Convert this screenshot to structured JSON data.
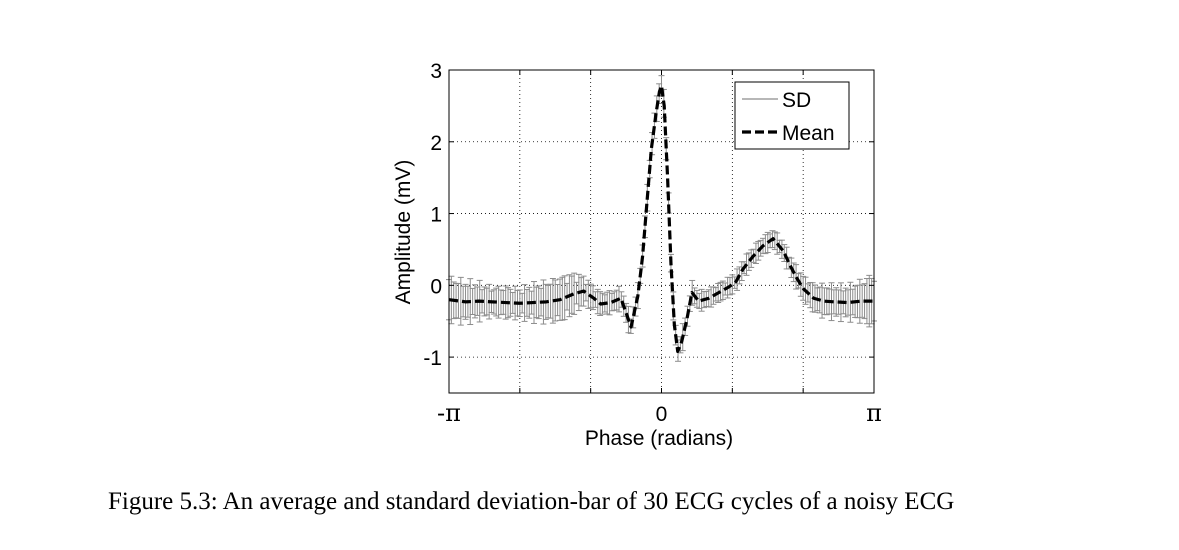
{
  "caption": "Figure 5.3: An average and standard deviation-bar of 30 ECG cycles of a noisy ECG",
  "chart_data": {
    "type": "line",
    "title": "",
    "xlabel": "Phase (radians)",
    "ylabel": "Amplitude (mV)",
    "xlim": [
      -3.1416,
      3.1416
    ],
    "ylim": [
      -1.5,
      3
    ],
    "grid": true,
    "legend_placement": "top-right",
    "x_ticks": [
      {
        "value": -3.1416,
        "label": "-π"
      },
      {
        "value": 0,
        "label": "0"
      },
      {
        "value": 3.1416,
        "label": "π"
      }
    ],
    "y_ticks": [
      {
        "value": -1,
        "label": "-1"
      },
      {
        "value": 0,
        "label": "0"
      },
      {
        "value": 1,
        "label": "1"
      },
      {
        "value": 2,
        "label": "2"
      },
      {
        "value": 3,
        "label": "3"
      }
    ],
    "x_grid": [
      -2.0944,
      -1.0472,
      0,
      1.0472,
      2.0944
    ],
    "series": [
      {
        "name": "SD",
        "style": "error-bars",
        "color": "#8c8c8c"
      },
      {
        "name": "Mean",
        "style": "dashed",
        "color": "#000000"
      }
    ],
    "x": [
      -3.14,
      -2.9,
      -2.7,
      -2.5,
      -2.3,
      -2.1,
      -1.9,
      -1.7,
      -1.5,
      -1.3,
      -1.15,
      -1.0,
      -0.9,
      -0.75,
      -0.6,
      -0.45,
      -0.35,
      -0.28,
      -0.22,
      -0.15,
      -0.08,
      -0.03,
      0.0,
      0.04,
      0.09,
      0.14,
      0.19,
      0.24,
      0.3,
      0.38,
      0.45,
      0.55,
      0.7,
      0.85,
      1.0,
      1.1,
      1.2,
      1.35,
      1.5,
      1.65,
      1.8,
      1.9,
      2.0,
      2.1,
      2.25,
      2.4,
      2.55,
      2.75,
      2.95,
      3.14
    ],
    "mean": [
      -0.2,
      -0.23,
      -0.22,
      -0.23,
      -0.24,
      -0.25,
      -0.24,
      -0.23,
      -0.2,
      -0.12,
      -0.08,
      -0.18,
      -0.26,
      -0.24,
      -0.18,
      -0.58,
      -0.15,
      0.4,
      1.1,
      1.9,
      2.4,
      2.7,
      2.78,
      2.5,
      1.5,
      0.3,
      -0.55,
      -0.92,
      -0.78,
      -0.45,
      -0.1,
      -0.22,
      -0.18,
      -0.1,
      -0.02,
      0.05,
      0.22,
      0.4,
      0.55,
      0.65,
      0.48,
      0.28,
      0.1,
      -0.05,
      -0.18,
      -0.22,
      -0.23,
      -0.24,
      -0.22,
      -0.22
    ],
    "sd": [
      0.28,
      0.25,
      0.22,
      0.18,
      0.2,
      0.18,
      0.22,
      0.25,
      0.28,
      0.25,
      0.18,
      0.15,
      0.15,
      0.14,
      0.14,
      0.14,
      0.14,
      0.15,
      0.15,
      0.16,
      0.16,
      0.16,
      0.16,
      0.16,
      0.15,
      0.15,
      0.15,
      0.15,
      0.14,
      0.14,
      0.13,
      0.12,
      0.12,
      0.12,
      0.12,
      0.12,
      0.12,
      0.12,
      0.12,
      0.12,
      0.12,
      0.12,
      0.14,
      0.16,
      0.18,
      0.2,
      0.2,
      0.2,
      0.25,
      0.35
    ]
  }
}
